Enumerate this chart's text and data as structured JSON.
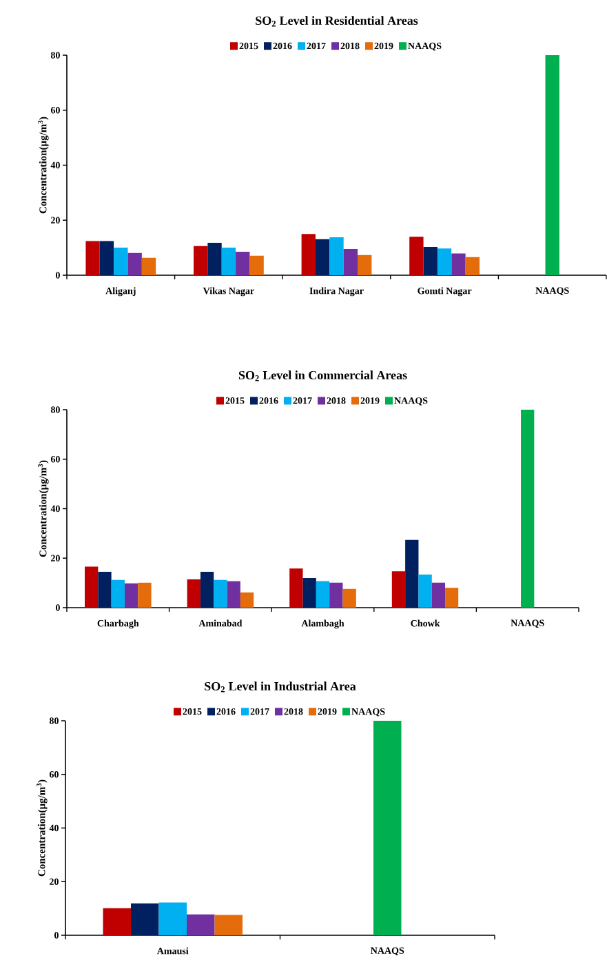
{
  "chart_data": [
    {
      "type": "bar",
      "title": "SO$_{2}$ Level in Residential Areas",
      "ylabel": "Concentration(µg/m$^{3}$)",
      "categories": [
        "Aliganj",
        "Vikas Nagar",
        "Indira Nagar",
        "Gomti Nagar",
        "NAAQS"
      ],
      "ylim": [
        0,
        80
      ],
      "yticks": [
        0,
        20,
        40,
        60,
        80
      ],
      "legend": "top",
      "series": [
        {
          "name": "2015",
          "color": "#c00000",
          "values": [
            12.4,
            10.6,
            15.0,
            14.0,
            null
          ]
        },
        {
          "name": "2016",
          "color": "#002060",
          "values": [
            12.4,
            11.8,
            13.1,
            10.3,
            null
          ]
        },
        {
          "name": "2017",
          "color": "#00b0f0",
          "values": [
            10.0,
            10.0,
            13.8,
            9.7,
            null
          ]
        },
        {
          "name": "2018",
          "color": "#7030a0",
          "values": [
            8.1,
            8.5,
            9.5,
            7.9,
            null
          ]
        },
        {
          "name": "2019",
          "color": "#e46c0a",
          "values": [
            6.3,
            7.1,
            7.4,
            6.6,
            null
          ]
        },
        {
          "name": "NAAQS",
          "color": "#00b050",
          "values": [
            null,
            null,
            null,
            null,
            80
          ]
        }
      ]
    },
    {
      "type": "bar",
      "title": "SO$_{2}$ Level in Commercial Areas",
      "ylabel": "Concentration(µg/m$^{3}$)",
      "categories": [
        "Charbagh",
        "Aminabad",
        "Alambagh",
        "Chowk",
        "NAAQS"
      ],
      "ylim": [
        0,
        80
      ],
      "yticks": [
        0,
        20,
        40,
        60,
        80
      ],
      "legend": "top",
      "series": [
        {
          "name": "2015",
          "color": "#c00000",
          "values": [
            16.6,
            11.4,
            15.8,
            14.7,
            null
          ]
        },
        {
          "name": "2016",
          "color": "#002060",
          "values": [
            14.5,
            14.5,
            12.0,
            27.4,
            null
          ]
        },
        {
          "name": "2017",
          "color": "#00b0f0",
          "values": [
            11.2,
            11.2,
            10.7,
            13.4,
            null
          ]
        },
        {
          "name": "2018",
          "color": "#7030a0",
          "values": [
            9.8,
            10.7,
            10.1,
            10.1,
            null
          ]
        },
        {
          "name": "2019",
          "color": "#e46c0a",
          "values": [
            10.1,
            6.1,
            7.6,
            8.0,
            null
          ]
        },
        {
          "name": "NAAQS",
          "color": "#00b050",
          "values": [
            null,
            null,
            null,
            null,
            80
          ]
        }
      ]
    },
    {
      "type": "bar",
      "title": "SO$_{2}$ Level in Industrial Area",
      "ylabel": "Concentration(µg/m$^{3}$)",
      "categories": [
        "Amausi",
        "NAAQS"
      ],
      "ylim": [
        0,
        80
      ],
      "yticks": [
        0,
        20,
        40,
        60,
        80
      ],
      "legend": "top",
      "series": [
        {
          "name": "2015",
          "color": "#c00000",
          "values": [
            10.1,
            null
          ]
        },
        {
          "name": "2016",
          "color": "#002060",
          "values": [
            11.9,
            null
          ]
        },
        {
          "name": "2017",
          "color": "#00b0f0",
          "values": [
            12.2,
            null
          ]
        },
        {
          "name": "2018",
          "color": "#7030a0",
          "values": [
            7.8,
            null
          ]
        },
        {
          "name": "2019",
          "color": "#e46c0a",
          "values": [
            7.6,
            null
          ]
        },
        {
          "name": "NAAQS",
          "color": "#00b050",
          "values": [
            null,
            80
          ]
        }
      ]
    }
  ]
}
